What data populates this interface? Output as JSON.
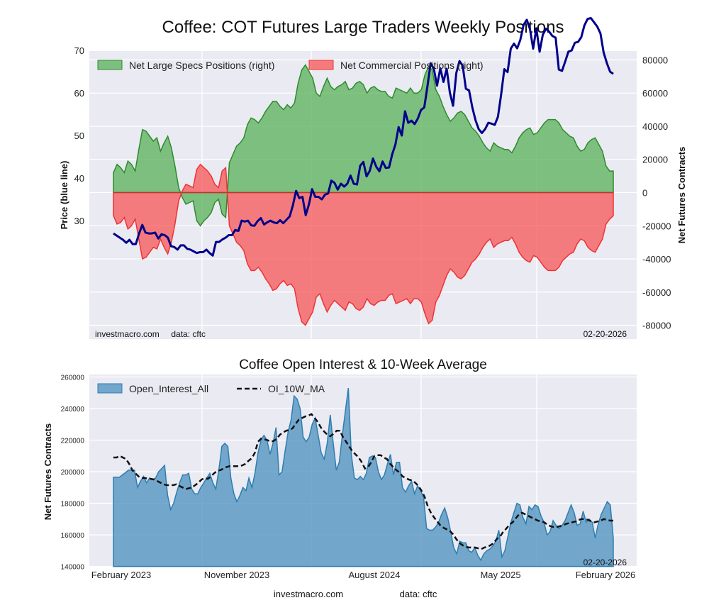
{
  "page": {
    "title": "Coffee: COT Futures Large Traders Weekly Positions",
    "footer_site": "investmacro.com",
    "footer_data": "data: cftc"
  },
  "chart_data": [
    {
      "type": "area",
      "title": "Coffee: COT Futures Large Traders Weekly Positions",
      "ylabel_left": "Price (blue line)",
      "ylabel_right": "Net Futures Contracts",
      "left_yticks": [
        30,
        40,
        50,
        60,
        70
      ],
      "right_yticks": [
        "80000",
        "60000",
        "40000",
        "20000",
        "0",
        "-20000",
        "-40000",
        "-60000",
        "-80000"
      ],
      "right_ylim": [
        -88000,
        85000
      ],
      "left_ylim": [
        21,
        79
      ],
      "x_range": [
        "2022-12",
        "2026-03"
      ],
      "watermark": "investmacro.com     data: cftc",
      "date_stamp": "02-20-2026",
      "legend": [
        "Net Large Specs Positions (right)",
        "Net Commercial Positions (right)"
      ],
      "legend_position": "top-left",
      "grid": true,
      "series": [
        {
          "name": "Net Large Specs Positions (right)",
          "color": "#3f9e3f",
          "values": [
            12000,
            17000,
            15000,
            12000,
            19000,
            17000,
            13000,
            26000,
            38000,
            37000,
            34000,
            31000,
            33000,
            25000,
            30000,
            34000,
            27000,
            16000,
            3000,
            -3000,
            -7000,
            -6000,
            -5000,
            -17000,
            -20000,
            -17000,
            -15000,
            -12000,
            -6000,
            -4000,
            -13000,
            -15000,
            18000,
            23000,
            28000,
            30000,
            33000,
            41000,
            45000,
            44000,
            42000,
            45000,
            49000,
            52000,
            55000,
            55000,
            52000,
            50000,
            53000,
            51000,
            54000,
            66000,
            74000,
            77000,
            73000,
            69000,
            60000,
            58000,
            64000,
            69000,
            64000,
            62000,
            64000,
            65000,
            67000,
            62000,
            63000,
            66000,
            67000,
            65000,
            60000,
            63000,
            64000,
            62000,
            61000,
            61000,
            58000,
            57000,
            63000,
            62000,
            61000,
            60000,
            63000,
            60000,
            60000,
            62000,
            71000,
            76000,
            74000,
            62000,
            58000,
            52000,
            47000,
            43000,
            45000,
            48000,
            49000,
            47000,
            43000,
            39000,
            37000,
            34000,
            30000,
            27000,
            25000,
            30000,
            28000,
            27000,
            26000,
            26000,
            24000,
            28000,
            33000,
            36000,
            38000,
            39000,
            35000,
            36000,
            39000,
            42000,
            44000,
            44000,
            44000,
            42000,
            38000,
            36000,
            34000,
            33000,
            28000,
            25000,
            26000,
            30000,
            32000,
            33000,
            29000,
            25000,
            16000,
            13000,
            13000
          ]
        },
        {
          "name": "Net Commercial Positions (right)",
          "color": "#f05050",
          "values": [
            -14000,
            -19000,
            -18000,
            -15000,
            -22000,
            -20000,
            -16000,
            -28000,
            -40000,
            -39000,
            -36000,
            -33000,
            -34000,
            -28000,
            -33000,
            -37000,
            -30000,
            -19000,
            -5000,
            1000,
            5000,
            4000,
            3000,
            14000,
            17000,
            15000,
            13000,
            10000,
            5000,
            3000,
            13000,
            15000,
            -20000,
            -25000,
            -30000,
            -32000,
            -35000,
            -43000,
            -47000,
            -47000,
            -45000,
            -48000,
            -52000,
            -55000,
            -59000,
            -58000,
            -55000,
            -53000,
            -56000,
            -55000,
            -58000,
            -70000,
            -78000,
            -80000,
            -76000,
            -72000,
            -63000,
            -61000,
            -67000,
            -72000,
            -68000,
            -65000,
            -67000,
            -69000,
            -71000,
            -66000,
            -67000,
            -70000,
            -71000,
            -69000,
            -64000,
            -67000,
            -68000,
            -66000,
            -65000,
            -65000,
            -62000,
            -61000,
            -67000,
            -66000,
            -65000,
            -64000,
            -67000,
            -64000,
            -64000,
            -66000,
            -73000,
            -79000,
            -77000,
            -66000,
            -62000,
            -56000,
            -50000,
            -46000,
            -48000,
            -51000,
            -52000,
            -50000,
            -46000,
            -42000,
            -40000,
            -37000,
            -33000,
            -30000,
            -28000,
            -33000,
            -31000,
            -30000,
            -29000,
            -29000,
            -27000,
            -31000,
            -36000,
            -39000,
            -41000,
            -42000,
            -38000,
            -39000,
            -42000,
            -45000,
            -47000,
            -47000,
            -47000,
            -45000,
            -41000,
            -39000,
            -37000,
            -36000,
            -31000,
            -28000,
            -29000,
            -33000,
            -35000,
            -36000,
            -32000,
            -28000,
            -19000,
            -16000,
            -14000
          ]
        },
        {
          "name": "Price (blue line)",
          "color": "#00008b",
          "axis": "left",
          "values": [
            27.0,
            26.5,
            26.0,
            25.5,
            24.8,
            25.5,
            24.5,
            24.5,
            27.0,
            29.0,
            27.2,
            27.0,
            27.0,
            27.2,
            25.8,
            26.8,
            26.6,
            26.0,
            24.0,
            23.8,
            23.2,
            24.2,
            24.2,
            23.4,
            23.2,
            22.8,
            22.4,
            22.6,
            22.6,
            23.2,
            22.4,
            21.8,
            25.0,
            25.0,
            25.6,
            26.0,
            26.6,
            26.6,
            27.8,
            27.6,
            30.0,
            29.8,
            30.0,
            28.9,
            28.8,
            29.9,
            30.6,
            29.1,
            29.6,
            30.0,
            29.6,
            29.4,
            30.1,
            29.4,
            30.2,
            31.0,
            33.6,
            37.0,
            35.3,
            35.6,
            31.3,
            33.8,
            37.4,
            35.6,
            35.6,
            35.0,
            36.1,
            36.4,
            39.4,
            38.9,
            37.3,
            38.7,
            38.0,
            38.7,
            40.6,
            38.7,
            38.5,
            42.9,
            43.8,
            40.4,
            41.7,
            44.6,
            42.7,
            41.6,
            43.9,
            42.4,
            42.5,
            45.6,
            47.9,
            52.0,
            50.0,
            55.7,
            53.0,
            53.5,
            52.7,
            54.0,
            56.0,
            56.6,
            61.6,
            67.0,
            65.7,
            61.7,
            65.8,
            62.6,
            65.7,
            60.1,
            57.0,
            64.7,
            67.5,
            66.4,
            61.0,
            60.6,
            56.6,
            53.6,
            51.5,
            50.6,
            51.5,
            53.0,
            52.8,
            52.5,
            54.4,
            59.6,
            65.6,
            64.9,
            70.4,
            71.6,
            70.5,
            72.5,
            76.0,
            77.2,
            75.0,
            70.4,
            75.2,
            69.7,
            73.7,
            75.1,
            74.4,
            73.4,
            73.0,
            65.5,
            65.2,
            67.4,
            69.7,
            70.0,
            71.8,
            72.0,
            73.1,
            75.9,
            77.4,
            77.6,
            76.6,
            75.6,
            74.0,
            69.5,
            67.0,
            65.0,
            64.5
          ]
        }
      ]
    },
    {
      "type": "area",
      "title": "Coffee Open Interest & 10-Week Average",
      "ylabel": "Net Futures Contracts",
      "yticks": [
        "140000",
        "160000",
        "180000",
        "200000",
        "220000",
        "240000",
        "260000"
      ],
      "ylim": [
        140000,
        262000
      ],
      "xticks": [
        "February 2023",
        "November 2023",
        "August 2024",
        "May 2025",
        "February 2026"
      ],
      "date_stamp": "02-20-2026",
      "legend": [
        "Open_Interest_All",
        "OI_10W_MA"
      ],
      "legend_position": "top-left",
      "grid": true,
      "series": [
        {
          "name": "Open_Interest_All",
          "color": "#4a8fbd",
          "values": [
            196500,
            196500,
            196500,
            198000,
            199500,
            201000,
            201000,
            201000,
            190000,
            194000,
            197000,
            193000,
            196000,
            195000,
            196000,
            200000,
            202000,
            204000,
            185000,
            176000,
            180000,
            187000,
            193000,
            198000,
            198000,
            199000,
            189000,
            186000,
            186000,
            190000,
            193000,
            196000,
            199000,
            193000,
            189000,
            201000,
            216000,
            218000,
            216000,
            196000,
            186000,
            181000,
            185000,
            190000,
            188000,
            196000,
            190000,
            199000,
            212000,
            220000,
            223000,
            220000,
            211000,
            218000,
            228000,
            198000,
            200000,
            213000,
            225000,
            233000,
            248000,
            246000,
            240000,
            222000,
            219000,
            222000,
            230000,
            234000,
            223000,
            212000,
            208000,
            218000,
            236000,
            218000,
            201000,
            206000,
            223000,
            238000,
            253000,
            211000,
            196000,
            195000,
            197000,
            195000,
            199000,
            209000,
            210000,
            209000,
            200000,
            195000,
            198000,
            205000,
            211000,
            198000,
            206000,
            206000,
            190000,
            187000,
            191000,
            194000,
            186000,
            191000,
            188000,
            184000,
            164000,
            163000,
            163000,
            165000,
            168000,
            173000,
            177000,
            171000,
            162000,
            152000,
            148000,
            156000,
            155000,
            155000,
            150000,
            149000,
            152000,
            147000,
            144000,
            148000,
            150000,
            151000,
            153000,
            156000,
            163000,
            146000,
            150000,
            159000,
            168000,
            174000,
            180000,
            179000,
            171000,
            167000,
            178000,
            176000,
            179000,
            178000,
            172000,
            168000,
            160000,
            162000,
            169000,
            166000,
            164000,
            166000,
            169000,
            174000,
            179000,
            174000,
            166000,
            167000,
            175000,
            168000,
            170000,
            168000,
            158000,
            167000,
            173000,
            177000,
            181000,
            179000,
            158000
          ]
        },
        {
          "name": "OI_10W_MA",
          "color": "#111111",
          "values": [
            209000,
            209000,
            210000,
            209000,
            208000,
            205000,
            201000,
            199000,
            197000,
            196000,
            196000,
            195500,
            195500,
            195000,
            194000,
            193000,
            192000,
            191500,
            191500,
            191500,
            192000,
            191000,
            190000,
            189000,
            189500,
            190000,
            191500,
            193000,
            195000,
            196000,
            195500,
            197000,
            199000,
            200500,
            201000,
            202000,
            203000,
            203500,
            203500,
            203500,
            203500,
            204000,
            205000,
            207000,
            208500,
            212000,
            219000,
            221000,
            220500,
            220000,
            219000,
            219500,
            221000,
            223500,
            225000,
            226000,
            226500,
            227500,
            230500,
            233000,
            234000,
            235000,
            235500,
            236500,
            234000,
            231500,
            228000,
            225500,
            223500,
            222500,
            224000,
            226000,
            226000,
            222000,
            219000,
            216000,
            213000,
            211000,
            209000,
            206000,
            202000,
            203000,
            206000,
            210000,
            210500,
            210500,
            209000,
            208000,
            205000,
            203000,
            201000,
            199500,
            197000,
            196000,
            195000,
            194500,
            193000,
            191000,
            188000,
            184000,
            178000,
            174000,
            171000,
            168500,
            166000,
            164500,
            163500,
            162500,
            160500,
            157500,
            155000,
            153500,
            152500,
            152000,
            152000,
            152000,
            151500,
            151000,
            152000,
            152500,
            153500,
            155000,
            157500,
            159000,
            162000,
            164000,
            166500,
            168000,
            170500,
            173000,
            174000,
            173000,
            172000,
            171000,
            170000,
            169000,
            168500,
            168000,
            166500,
            165500,
            165000,
            165000,
            165500,
            166000,
            167000,
            167500,
            168000,
            168500,
            169500,
            170000,
            170000,
            169500,
            168500,
            168000,
            168500,
            169000,
            170000,
            169500,
            169000,
            169000
          ]
        }
      ]
    }
  ]
}
